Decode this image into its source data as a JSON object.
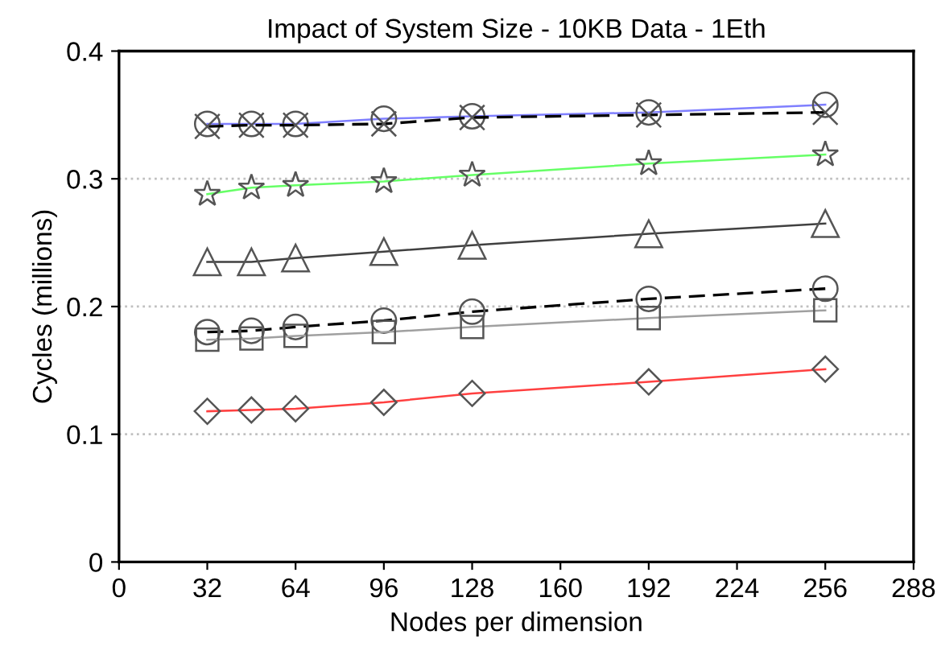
{
  "chart_data": {
    "type": "line",
    "title": "Impact of System Size - 10KB Data - 1Eth",
    "xlabel": "Nodes per dimension",
    "ylabel": "Cycles (millions)",
    "x": [
      32,
      48,
      64,
      96,
      128,
      192,
      256
    ],
    "series": [
      {
        "color": "#7f7fff",
        "marker": "circle",
        "line_style": "solid",
        "values": [
          0.343,
          0.343,
          0.343,
          0.347,
          0.349,
          0.352,
          0.358
        ]
      },
      {
        "color": "#000000",
        "marker": "cross",
        "line_style": "dashed",
        "values": [
          0.341,
          0.342,
          0.342,
          0.343,
          0.348,
          0.35,
          0.352
        ]
      },
      {
        "color": "#66ff66",
        "marker": "star",
        "line_style": "solid",
        "values": [
          0.288,
          0.293,
          0.295,
          0.298,
          0.303,
          0.312,
          0.319
        ]
      },
      {
        "color": "#404040",
        "marker": "triangle",
        "line_style": "solid",
        "values": [
          0.235,
          0.235,
          0.238,
          0.243,
          0.248,
          0.257,
          0.265
        ]
      },
      {
        "color": "#000000",
        "marker": "circle",
        "line_style": "dashed",
        "values": [
          0.18,
          0.181,
          0.184,
          0.189,
          0.196,
          0.206,
          0.214
        ]
      },
      {
        "color": "#a0a0a0",
        "marker": "square",
        "line_style": "solid",
        "values": [
          0.174,
          0.175,
          0.177,
          0.18,
          0.184,
          0.191,
          0.197
        ]
      },
      {
        "color": "#ff4040",
        "marker": "diamond",
        "line_style": "solid",
        "values": [
          0.118,
          0.119,
          0.12,
          0.125,
          0.132,
          0.141,
          0.151
        ]
      }
    ],
    "xlim": [
      0,
      288
    ],
    "xticks": [
      0,
      32,
      64,
      96,
      128,
      160,
      192,
      224,
      256,
      288
    ],
    "ylim": [
      0,
      0.4
    ],
    "yticks": [
      0,
      0.1,
      0.2,
      0.3,
      0.4
    ],
    "grid": "y"
  }
}
